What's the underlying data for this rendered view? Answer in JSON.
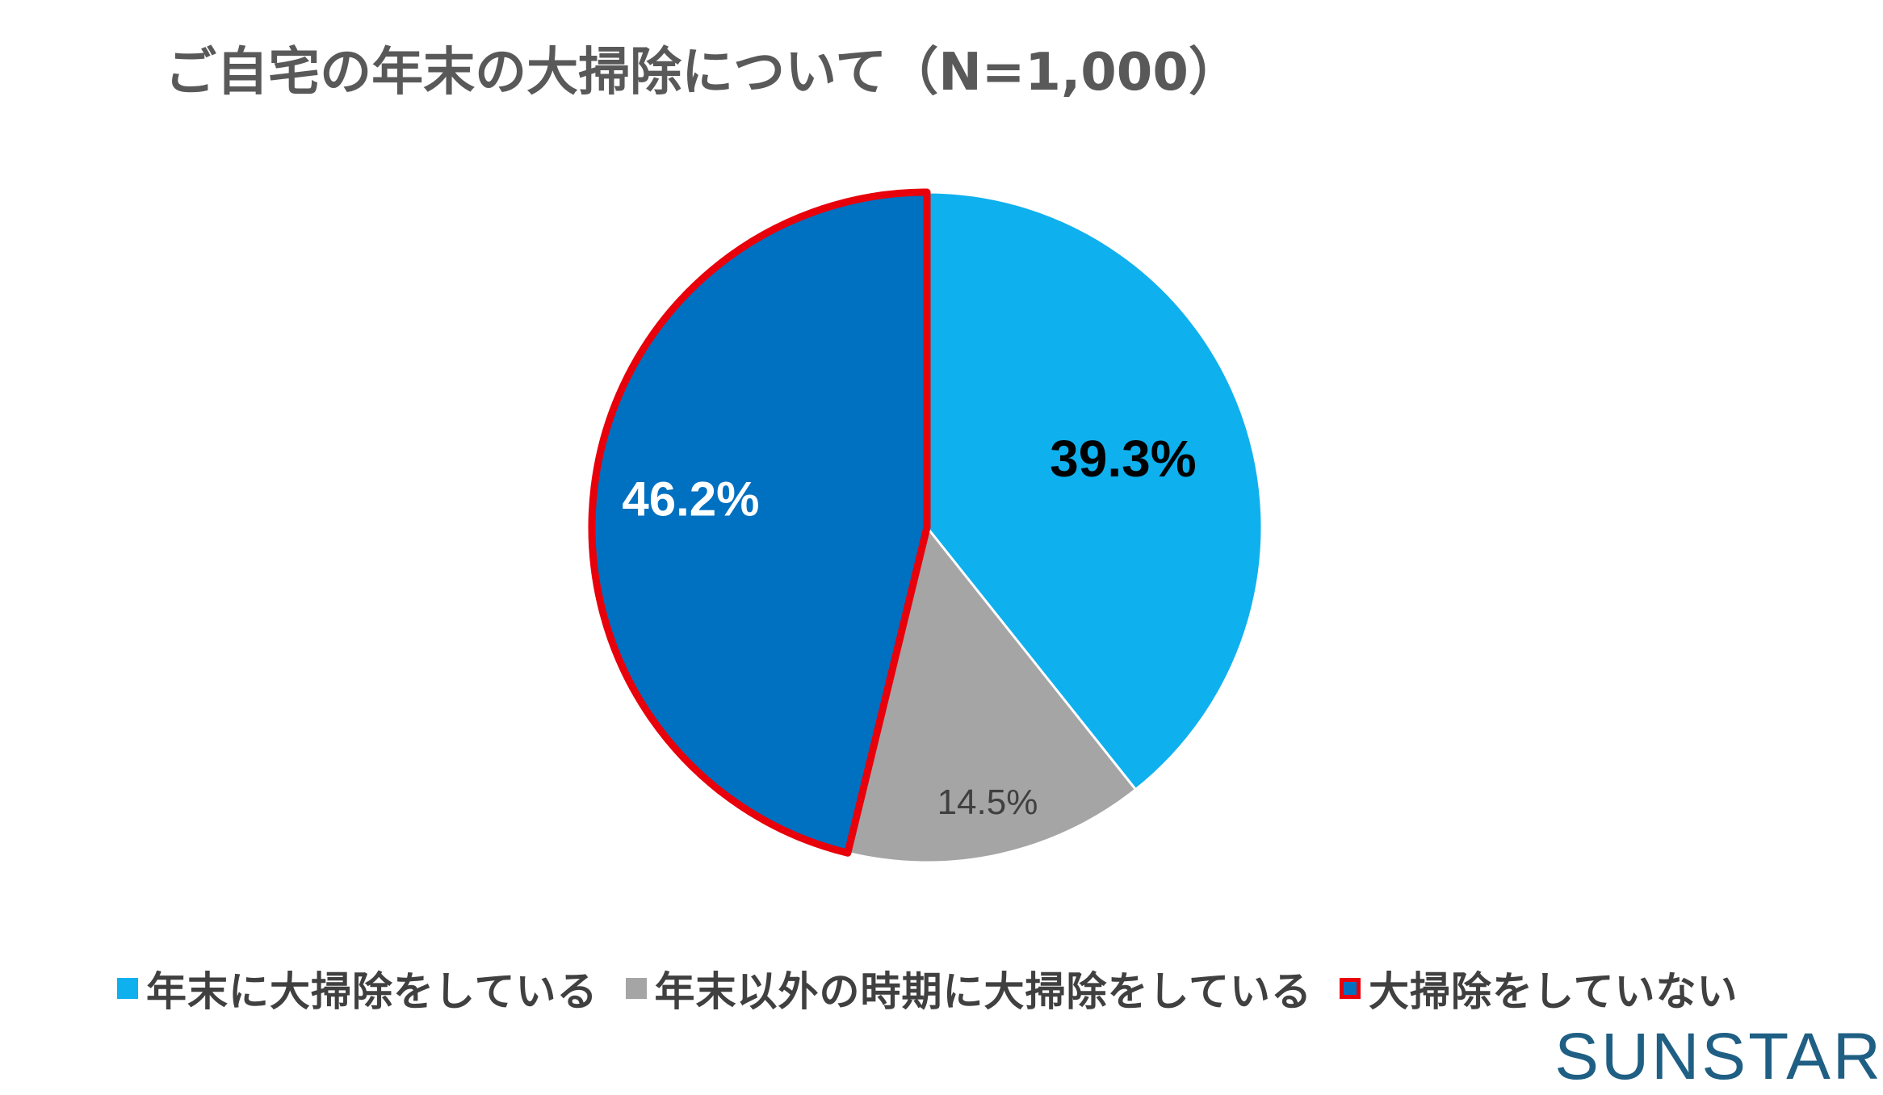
{
  "chart_data": {
    "type": "pie",
    "title": "ご自宅の年末の大掃除について（N=1,000）",
    "slices": [
      {
        "label": "年末に大掃除をしている",
        "value": 39.3,
        "value_label": "39.3%",
        "color": "#0fb0ee",
        "label_color": "#000000",
        "outlined": false
      },
      {
        "label": "年末以外の時期に大掃除をしている",
        "value": 14.5,
        "value_label": "14.5%",
        "color": "#a5a5a5",
        "label_color": "#404040",
        "outlined": false
      },
      {
        "label": "大掃除をしていない",
        "value": 46.2,
        "value_label": "46.2%",
        "color": "#0070c0",
        "label_color": "#ffffff",
        "outlined": true
      }
    ],
    "highlight_color": "#e8000b",
    "legend_position": "bottom",
    "start_angle": "12 o'clock",
    "direction": "clockwise"
  },
  "brand": {
    "logo_text": "SUNSTAR",
    "color": "#1f5f84"
  }
}
